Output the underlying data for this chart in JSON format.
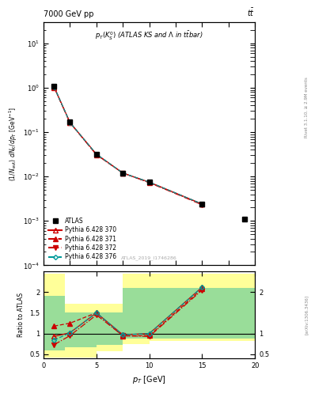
{
  "title_top": "7000 GeV pp",
  "title_top_right": "tt",
  "main_title": "p_{T}(K^{0}_{S}) (ATLAS KS and \\Lambda in t\\bar{t}bar)",
  "watermark": "ATLAS_2019_I1746286",
  "right_label_top": "Rivet 3.1.10, ≥ 2.9M events",
  "right_label_bottom": "[arXiv:1306.3436]",
  "xlabel": "p_{T} [GeV]",
  "ylabel_main": "(1/N_{evt}) dN_{K}/dp_{T} [GeV^{-1}]",
  "ylabel_ratio": "Ratio to ATLAS",
  "xlim": [
    0,
    20
  ],
  "ylim_main": [
    0.0001,
    30
  ],
  "ylim_ratio": [
    0.4,
    2.5
  ],
  "atlas_x": [
    1.0,
    2.5,
    5.0,
    7.5,
    10.0,
    15.0,
    19.0
  ],
  "atlas_y": [
    1.1,
    0.17,
    0.032,
    0.012,
    0.0075,
    0.0024,
    0.0011
  ],
  "atlas_yerr": [
    0.05,
    0.01,
    0.002,
    0.001,
    0.0005,
    0.0002,
    0.0001
  ],
  "py370_x": [
    1.0,
    2.5,
    5.0,
    7.5,
    10.0,
    15.0
  ],
  "py370_y": [
    1.05,
    0.165,
    0.032,
    0.012,
    0.0075,
    0.0024
  ],
  "py371_x": [
    1.0,
    2.5,
    5.0,
    7.5,
    10.0,
    15.0
  ],
  "py371_y": [
    1.02,
    0.165,
    0.031,
    0.012,
    0.0073,
    0.0024
  ],
  "py372_x": [
    1.0,
    2.5,
    5.0,
    7.5,
    10.0,
    15.0
  ],
  "py372_y": [
    1.02,
    0.163,
    0.031,
    0.012,
    0.0073,
    0.0023
  ],
  "py376_x": [
    1.0,
    2.5,
    5.0,
    7.5,
    10.0,
    15.0
  ],
  "py376_y": [
    1.05,
    0.165,
    0.032,
    0.012,
    0.0075,
    0.0024
  ],
  "ratio370_x": [
    1.0,
    2.5,
    5.0,
    7.5,
    10.0,
    15.0
  ],
  "ratio370_y": [
    0.93,
    1.02,
    1.5,
    0.97,
    1.0,
    2.12
  ],
  "ratio371_x": [
    1.0,
    2.5,
    5.0,
    7.5,
    10.0,
    15.0
  ],
  "ratio371_y": [
    1.18,
    1.25,
    1.5,
    0.94,
    0.95,
    2.08
  ],
  "ratio372_x": [
    1.0,
    2.5,
    5.0,
    7.5,
    10.0,
    15.0
  ],
  "ratio372_y": [
    0.73,
    0.95,
    1.45,
    0.95,
    0.93,
    2.05
  ],
  "ratio376_x": [
    1.0,
    2.5,
    5.0,
    7.5,
    10.0,
    15.0
  ],
  "ratio376_y": [
    0.84,
    1.02,
    1.5,
    0.97,
    1.0,
    2.12
  ],
  "yellow_band_edges": [
    0,
    2,
    5,
    7.5,
    10,
    20
  ],
  "yellow_lo": [
    0.43,
    0.43,
    0.58,
    0.75,
    0.82,
    0.82
  ],
  "yellow_hi": [
    2.45,
    1.72,
    1.72,
    2.45,
    2.45,
    2.45
  ],
  "green_band_edges": [
    0,
    2,
    5,
    7.5,
    10,
    20
  ],
  "green_lo": [
    0.6,
    0.67,
    0.72,
    0.87,
    0.87,
    0.87
  ],
  "green_hi": [
    1.9,
    1.5,
    1.5,
    2.1,
    2.1,
    2.1
  ],
  "color_370": "#cc0000",
  "color_371": "#cc0000",
  "color_372": "#cc0000",
  "color_376": "#009999",
  "color_atlas": "#000000",
  "color_yellow": "#ffff99",
  "color_green": "#99dd99"
}
